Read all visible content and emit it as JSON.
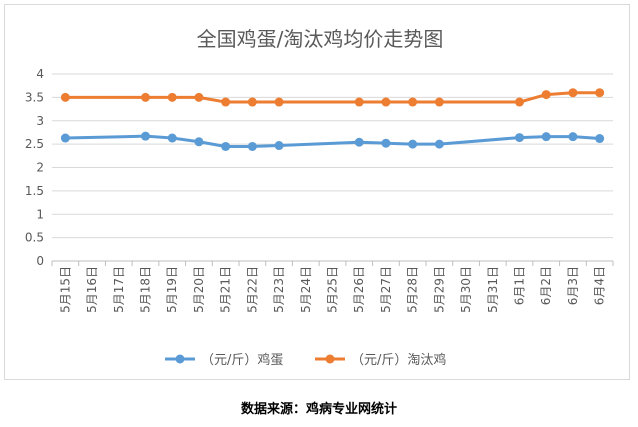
{
  "chart_data": {
    "type": "line",
    "title": "全国鸡蛋/淘汰鸡均价走势图",
    "xlabel": "",
    "ylabel": "",
    "categories": [
      "5月15日",
      "5月16日",
      "5月17日",
      "5月18日",
      "5月19日",
      "5月20日",
      "5月21日",
      "5月22日",
      "5月23日",
      "5月24日",
      "5月25日",
      "5月26日",
      "5月27日",
      "5月28日",
      "5月29日",
      "5月30日",
      "5月31日",
      "6月1日",
      "6月2日",
      "6月3日",
      "6月4日"
    ],
    "ylim": [
      0,
      4
    ],
    "yticks": [
      "0",
      "0.5",
      "1",
      "1.5",
      "2",
      "2.5",
      "3",
      "3.5",
      "4"
    ],
    "grid": "horizontal",
    "legend": "bottom",
    "series": [
      {
        "name": "（元/斤）鸡蛋",
        "color": "#5b9bd5",
        "values": [
          2.63,
          null,
          null,
          2.67,
          2.63,
          2.55,
          2.45,
          2.45,
          2.47,
          null,
          null,
          2.54,
          2.52,
          2.5,
          2.5,
          null,
          null,
          2.64,
          2.66,
          2.66,
          2.62
        ]
      },
      {
        "name": "（元/斤）淘汰鸡",
        "color": "#ed7d31",
        "values": [
          3.5,
          null,
          null,
          3.5,
          3.5,
          3.5,
          3.4,
          3.4,
          3.4,
          null,
          null,
          3.4,
          3.4,
          3.4,
          3.4,
          null,
          null,
          3.4,
          3.56,
          3.6,
          3.6
        ]
      }
    ]
  },
  "source_text": "数据来源：鸡病专业网统计"
}
